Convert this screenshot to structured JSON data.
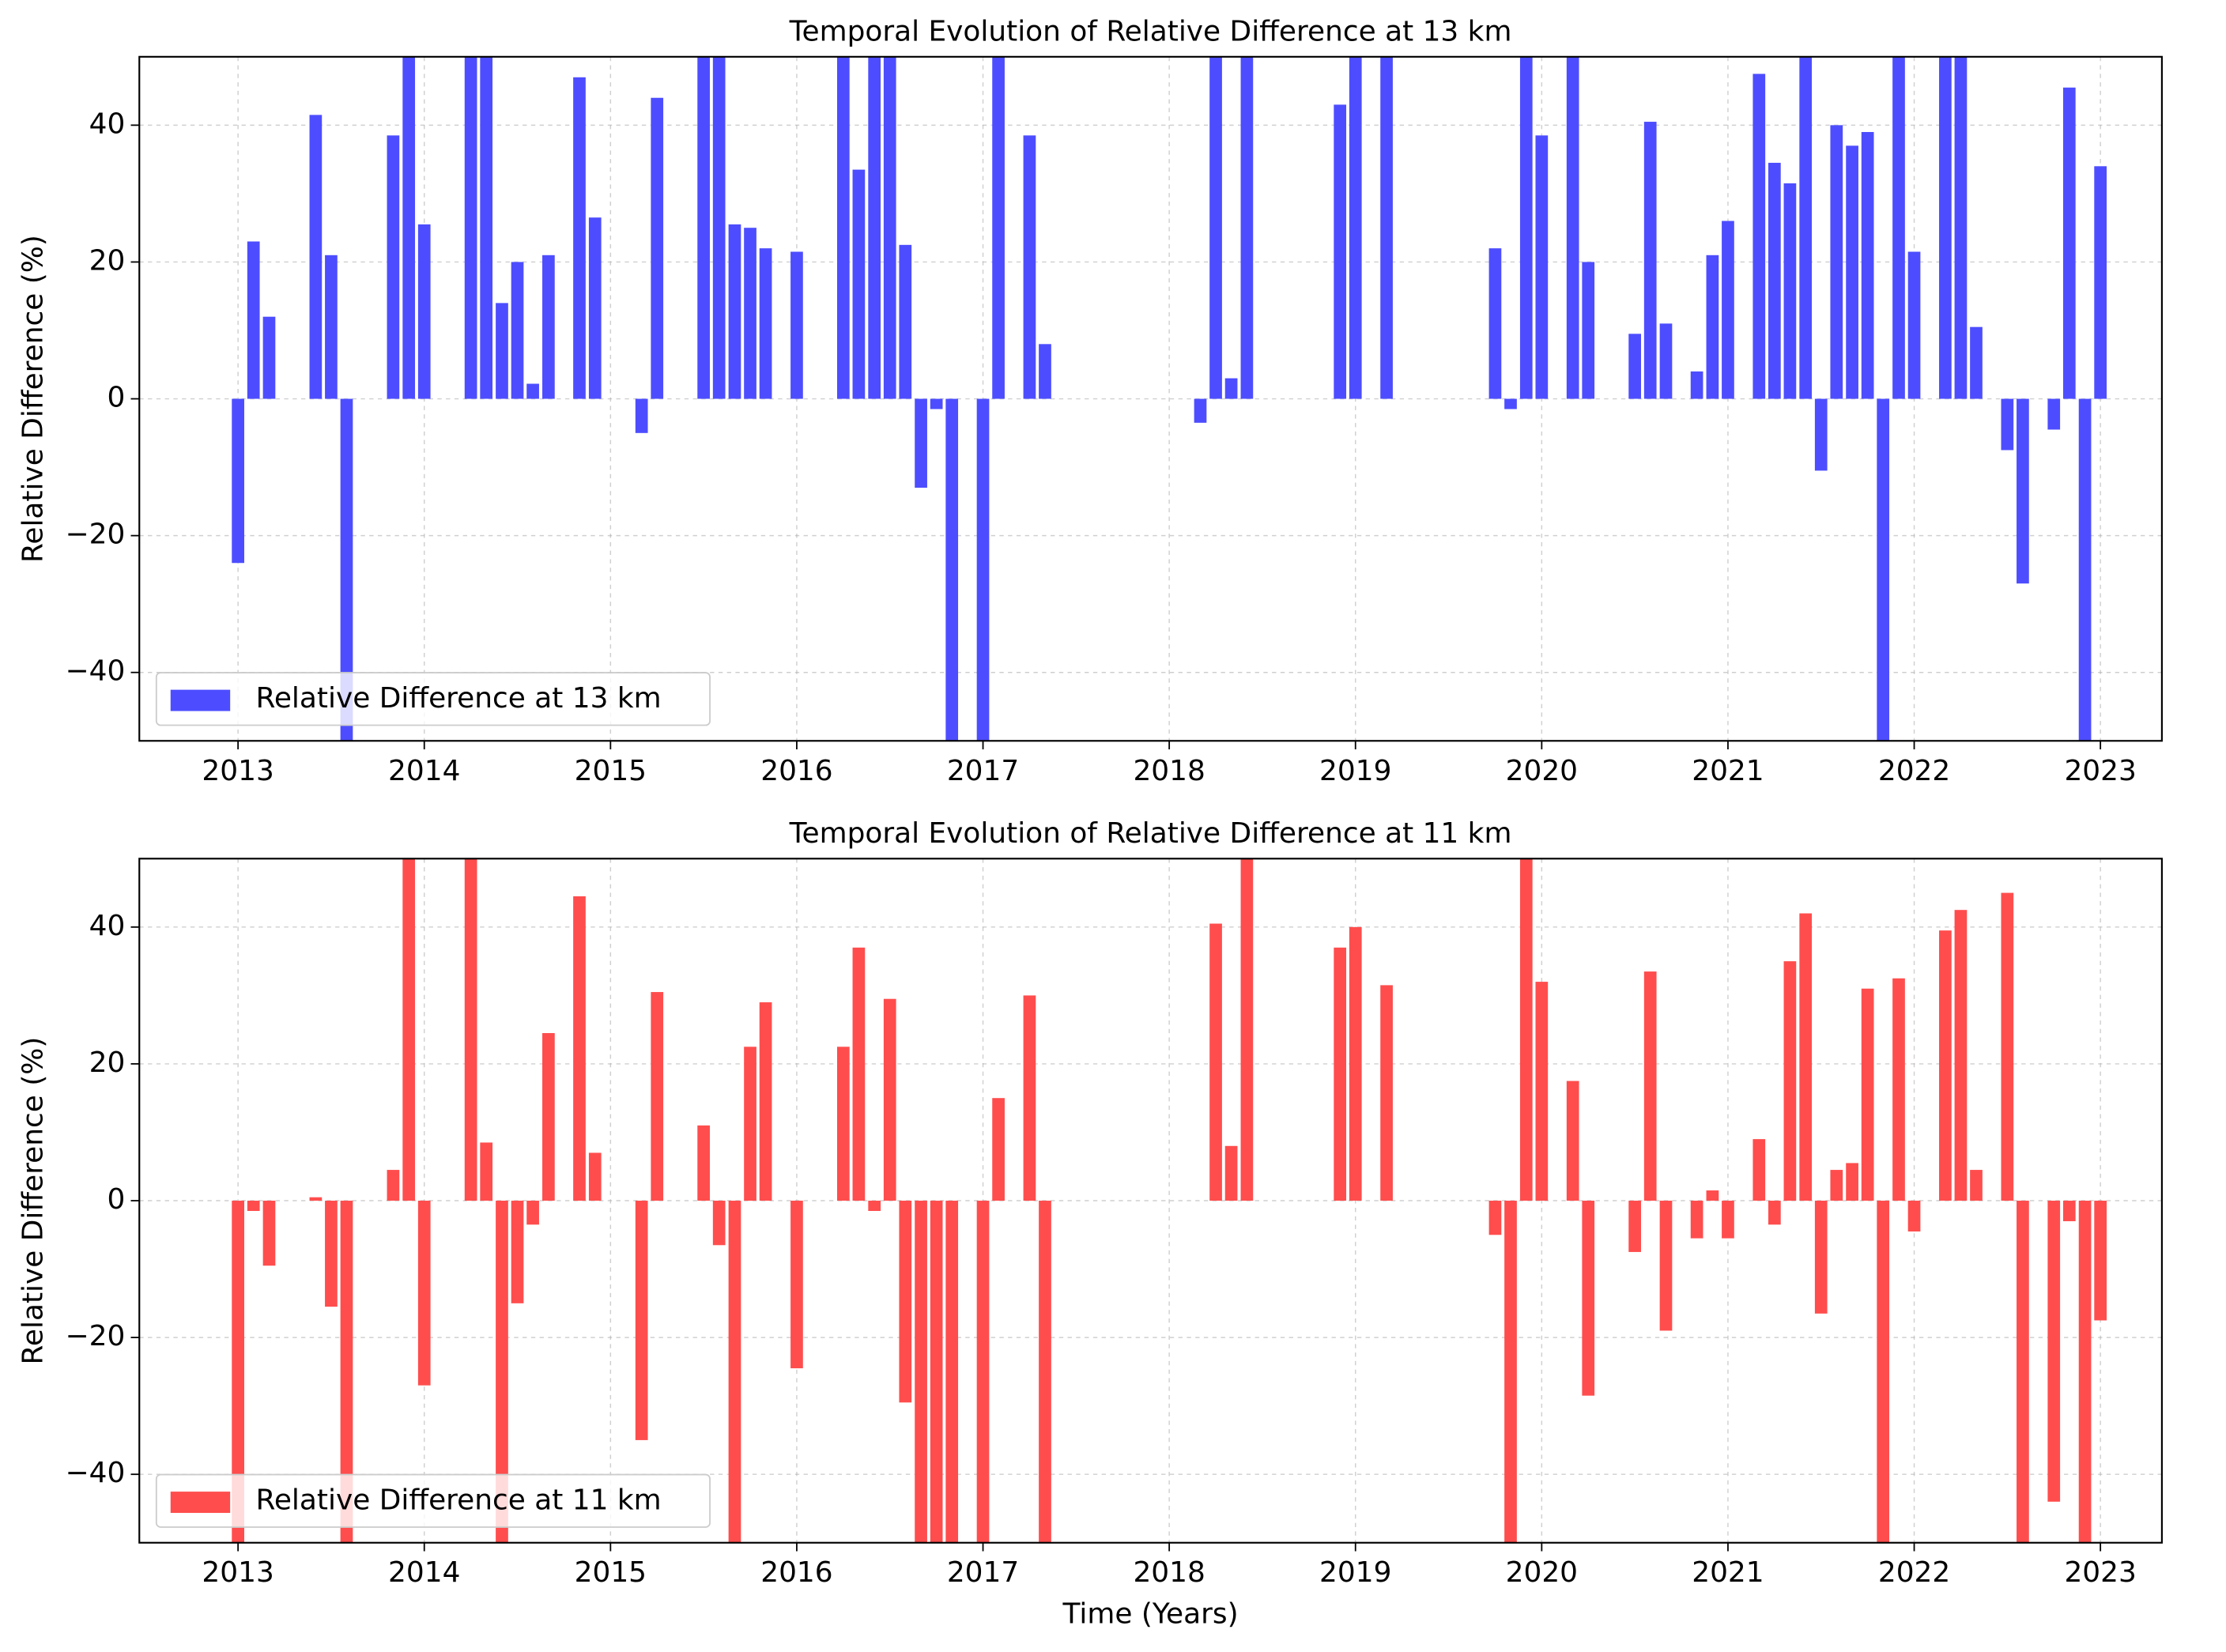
{
  "chart_data": [
    {
      "type": "bar",
      "title": "Temporal Evolution of Relative Difference at 13 km",
      "ylabel": "Relative Difference (%)",
      "x": [
        2013.0,
        2013.083,
        2013.167,
        2013.417,
        2013.5,
        2013.583,
        2013.833,
        2013.917,
        2014.0,
        2014.25,
        2014.333,
        2014.417,
        2014.5,
        2014.583,
        2014.667,
        2014.833,
        2014.917,
        2015.167,
        2015.25,
        2015.5,
        2015.583,
        2015.667,
        2015.75,
        2015.833,
        2016.0,
        2016.25,
        2016.333,
        2016.417,
        2016.5,
        2016.583,
        2016.667,
        2016.75,
        2016.833,
        2017.0,
        2017.083,
        2017.25,
        2017.333,
        2018.167,
        2018.25,
        2018.333,
        2018.417,
        2018.917,
        2019.0,
        2019.167,
        2019.75,
        2019.833,
        2019.917,
        2020.0,
        2020.167,
        2020.25,
        2020.5,
        2020.583,
        2020.667,
        2020.833,
        2020.917,
        2021.0,
        2021.167,
        2021.25,
        2021.333,
        2021.417,
        2021.5,
        2021.583,
        2021.667,
        2021.75,
        2021.833,
        2021.917,
        2022.0,
        2022.167,
        2022.25,
        2022.333,
        2022.5,
        2022.583,
        2022.75,
        2022.833,
        2022.917,
        2023.0
      ],
      "series": [
        {
          "name": "Relative Difference at 13 km",
          "color": "#4d4dff",
          "values": [
            -24,
            23,
            12,
            41.5,
            21,
            -50,
            38.5,
            50,
            25.5,
            50,
            50,
            14,
            20,
            2.2,
            21,
            47,
            26.5,
            -5,
            44,
            50,
            50,
            25.5,
            25,
            22,
            21.5,
            50,
            33.5,
            50,
            50,
            22.5,
            -13,
            -1.5,
            -50,
            -50,
            50,
            38.5,
            8,
            -3.5,
            50,
            3,
            50,
            43,
            50,
            50,
            22,
            -1.5,
            50,
            38.5,
            50,
            20,
            9.5,
            40.5,
            11,
            4,
            21,
            26,
            47.5,
            34.5,
            31.5,
            50,
            -10.5,
            40,
            37,
            39,
            -50,
            50,
            21.5,
            50,
            50,
            10.5,
            -7.5,
            -27,
            -4.5,
            45.5,
            -50,
            34
          ]
        }
      ],
      "xlim": [
        2012.47,
        2023.33
      ],
      "xticks": [
        2013,
        2014,
        2015,
        2016,
        2017,
        2018,
        2019,
        2020,
        2021,
        2022,
        2023
      ],
      "ylim": [
        -50,
        50
      ],
      "yticks": [
        {
          "value": -40,
          "label": "−40"
        },
        {
          "value": -20,
          "label": "−20"
        },
        0,
        20,
        40
      ],
      "grid": true,
      "legend": "lower left"
    },
    {
      "type": "bar",
      "title": "Temporal Evolution of Relative Difference at 11 km",
      "ylabel": "Relative Difference (%)",
      "xlabel": "Time (Years)",
      "x": [
        2013.0,
        2013.083,
        2013.167,
        2013.417,
        2013.5,
        2013.583,
        2013.833,
        2013.917,
        2014.0,
        2014.25,
        2014.333,
        2014.417,
        2014.5,
        2014.583,
        2014.667,
        2014.833,
        2014.917,
        2015.167,
        2015.25,
        2015.5,
        2015.583,
        2015.667,
        2015.75,
        2015.833,
        2016.0,
        2016.25,
        2016.333,
        2016.417,
        2016.5,
        2016.583,
        2016.667,
        2016.75,
        2016.833,
        2017.0,
        2017.083,
        2017.25,
        2017.333,
        2018.25,
        2018.333,
        2018.417,
        2018.917,
        2019.0,
        2019.167,
        2019.75,
        2019.833,
        2019.917,
        2020.0,
        2020.167,
        2020.25,
        2020.5,
        2020.583,
        2020.667,
        2020.833,
        2020.917,
        2021.0,
        2021.167,
        2021.25,
        2021.333,
        2021.417,
        2021.5,
        2021.583,
        2021.667,
        2021.75,
        2021.833,
        2021.917,
        2022.0,
        2022.167,
        2022.25,
        2022.333,
        2022.5,
        2022.583,
        2022.75,
        2022.833,
        2022.917,
        2023.0
      ],
      "series": [
        {
          "name": "Relative Difference at 11 km",
          "color": "#ff4d4d",
          "values": [
            -50,
            -1.5,
            -9.5,
            0.5,
            -15.5,
            -50,
            4.5,
            50,
            -27,
            50,
            8.5,
            -50,
            -15,
            -3.5,
            24.5,
            44.5,
            7,
            -35,
            30.5,
            11,
            -6.5,
            -50,
            22.5,
            29,
            -24.5,
            22.5,
            37,
            -1.5,
            29.5,
            -29.5,
            -50,
            -50,
            -50,
            -50,
            15,
            30,
            -50,
            40.5,
            8,
            50,
            37,
            40,
            31.5,
            -5,
            -50,
            50,
            32,
            17.5,
            -28.5,
            -7.5,
            33.5,
            -19,
            -5.5,
            1.5,
            -5.5,
            9,
            -3.5,
            35,
            42,
            -16.5,
            4.5,
            5.5,
            31,
            -50,
            32.5,
            -4.5,
            39.5,
            42.5,
            4.5,
            45,
            -50,
            -44,
            -3,
            -50,
            -17.5
          ]
        }
      ],
      "xlim": [
        2012.47,
        2023.33
      ],
      "xticks": [
        2013,
        2014,
        2015,
        2016,
        2017,
        2018,
        2019,
        2020,
        2021,
        2022,
        2023
      ],
      "ylim": [
        -50,
        50
      ],
      "yticks": [
        {
          "value": -40,
          "label": "−40"
        },
        {
          "value": -20,
          "label": "−20"
        },
        0,
        20,
        40
      ],
      "grid": true,
      "legend": "lower left"
    }
  ]
}
